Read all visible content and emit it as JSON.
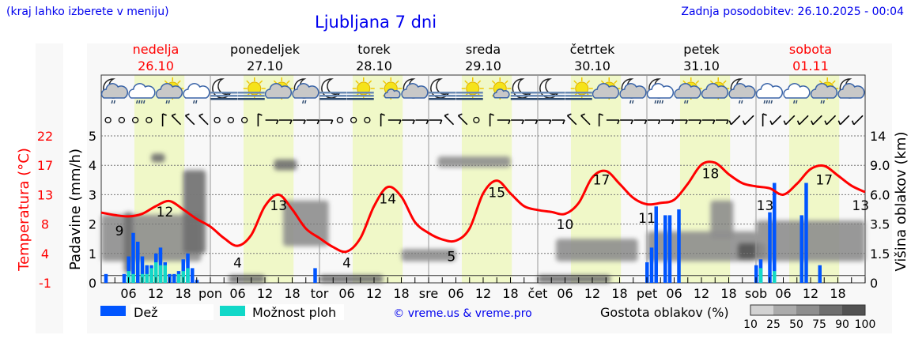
{
  "header": {
    "menu_hint": "(kraj lahko izberete v meniju)",
    "title": "Ljubljana 7 dni",
    "updated": "Zadnja posodobitev: 26.10.2025 - 00:04"
  },
  "colors": {
    "rain": "#0055ff",
    "showers": "#11d8c8",
    "temperature": "#ff0000",
    "daylight": "#f0f8c8",
    "weekend": "#ff0000",
    "link": "#0000ee"
  },
  "days": [
    {
      "name": "nedelja",
      "date": "26.10",
      "abbr": "",
      "weekend": true
    },
    {
      "name": "ponedeljek",
      "date": "27.10",
      "abbr": "pon",
      "weekend": false
    },
    {
      "name": "torek",
      "date": "28.10",
      "abbr": "tor",
      "weekend": false
    },
    {
      "name": "sreda",
      "date": "29.10",
      "abbr": "sre",
      "weekend": false
    },
    {
      "name": "četrtek",
      "date": "30.10",
      "abbr": "čet",
      "weekend": false
    },
    {
      "name": "petek",
      "date": "31.10",
      "abbr": "pet",
      "weekend": false
    },
    {
      "name": "sobota",
      "date": "01.11",
      "abbr": "sob",
      "weekend": true
    }
  ],
  "weather_icons": [
    "moon-cloud-rain",
    "cloud-heavy-rain",
    "sun-cloud-rain",
    "cloud-rain",
    "moon-fog",
    "sun-fog",
    "sun-cloud",
    "moon-cloud-rain",
    "moon-fog",
    "sun-fog",
    "sun-small-cloud",
    "moon-cloud",
    "moon-fog",
    "sun-fog",
    "sun-small-cloud",
    "moon-fog",
    "moon-fog",
    "sun-fog",
    "sun-cloud",
    "moon-cloud-rain",
    "moon-cloud-heavy-rain",
    "sun-cloud-rain",
    "sun-cloud",
    "moon-cloud-rain",
    "cloud-heavy-rain",
    "cloud-rain",
    "sun-cloud-rain",
    "moon-cloud"
  ],
  "wind_directions_deg": [
    "calm",
    "calm",
    "calm",
    "calm",
    0,
    315,
    315,
    315,
    "calm",
    "calm",
    "calm",
    0,
    90,
    90,
    90,
    90,
    90,
    "calm",
    "calm",
    "calm",
    0,
    90,
    90,
    90,
    90,
    315,
    315,
    "calm",
    0,
    90,
    90,
    90,
    90,
    90,
    315,
    315,
    0,
    90,
    90,
    90,
    90,
    90,
    90,
    90,
    90,
    90,
    225,
    225,
    0,
    225,
    225,
    225,
    225,
    225,
    225,
    225
  ],
  "chart_data": {
    "type": "line+bar+heatmap",
    "title": "Ljubljana 7 dni",
    "x_hour_ticks": [
      "06",
      "12",
      "18"
    ],
    "temperature": {
      "axis_label": "Temperatura (°C)",
      "ticks": [
        "22",
        "17",
        "13",
        "8",
        "4",
        "-1"
      ],
      "range": [
        -1,
        22
      ],
      "step_hours": 3,
      "values": [
        10,
        9.6,
        9.4,
        9.8,
        11,
        11.8,
        10.5,
        9,
        7.8,
        6,
        4.8,
        6.5,
        11,
        12.8,
        10.5,
        7.5,
        6,
        4.6,
        3.9,
        6,
        11,
        14,
        12.5,
        8.5,
        6.8,
        5.8,
        5.6,
        7.5,
        13,
        15,
        13,
        11,
        10.4,
        10.1,
        9.8,
        11.5,
        15.5,
        16.5,
        14.5,
        12.3,
        11.3,
        11.5,
        12,
        14.5,
        17.5,
        17.8,
        16,
        14.6,
        14.1,
        13.8,
        12.8,
        14.5,
        16.8,
        17.3,
        15.8,
        14.2,
        13.2
      ],
      "labels": [
        {
          "hour": 4,
          "text": "9"
        },
        {
          "hour": 14,
          "text": "12"
        },
        {
          "hour": 30,
          "text": "4"
        },
        {
          "hour": 39,
          "text": "13"
        },
        {
          "hour": 54,
          "text": "4"
        },
        {
          "hour": 63,
          "text": "14"
        },
        {
          "hour": 77,
          "text": "5"
        },
        {
          "hour": 87,
          "text": "15"
        },
        {
          "hour": 102,
          "text": "10"
        },
        {
          "hour": 110,
          "text": "17"
        },
        {
          "hour": 120,
          "text": "11"
        },
        {
          "hour": 134,
          "text": "18"
        },
        {
          "hour": 146,
          "text": "13"
        },
        {
          "hour": 159,
          "text": "17"
        },
        {
          "hour": 167,
          "text": "13"
        }
      ]
    },
    "precipitation": {
      "axis_label": "Padavine (mm/h)",
      "ticks": [
        "0",
        "1",
        "2",
        "3",
        "4",
        "5"
      ],
      "range": [
        0,
        5
      ],
      "hourly": [
        {
          "hour": 1,
          "rain": 0.3,
          "showers": 0
        },
        {
          "hour": 5,
          "rain": 0.3,
          "showers": 0
        },
        {
          "hour": 6,
          "rain": 0.9,
          "showers": 0.4
        },
        {
          "hour": 7,
          "rain": 1.7,
          "showers": 0.3
        },
        {
          "hour": 8,
          "rain": 1.4,
          "showers": 0
        },
        {
          "hour": 9,
          "rain": 0.9,
          "showers": 0.3
        },
        {
          "hour": 10,
          "rain": 0.6,
          "showers": 0.3
        },
        {
          "hour": 11,
          "rain": 0.6,
          "showers": 0.5
        },
        {
          "hour": 12,
          "rain": 1.0,
          "showers": 0.7
        },
        {
          "hour": 13,
          "rain": 1.2,
          "showers": 0.6
        },
        {
          "hour": 14,
          "rain": 0.7,
          "showers": 0.6
        },
        {
          "hour": 15,
          "rain": 0.3,
          "showers": 0
        },
        {
          "hour": 16,
          "rain": 0.3,
          "showers": 0
        },
        {
          "hour": 17,
          "rain": 0.4,
          "showers": 0.3
        },
        {
          "hour": 18,
          "rain": 0.8,
          "showers": 0.4
        },
        {
          "hour": 19,
          "rain": 1.0,
          "showers": 0.5
        },
        {
          "hour": 20,
          "rain": 0.5,
          "showers": 0
        },
        {
          "hour": 21,
          "rain": 0.1,
          "showers": 0
        },
        {
          "hour": 47,
          "rain": 0.5,
          "showers": 0
        },
        {
          "hour": 120,
          "rain": 0.7,
          "showers": 0
        },
        {
          "hour": 121,
          "rain": 1.2,
          "showers": 0
        },
        {
          "hour": 122,
          "rain": 2.6,
          "showers": 0
        },
        {
          "hour": 124,
          "rain": 2.3,
          "showers": 0
        },
        {
          "hour": 125,
          "rain": 2.3,
          "showers": 0
        },
        {
          "hour": 127,
          "rain": 2.5,
          "showers": 0
        },
        {
          "hour": 144,
          "rain": 0.6,
          "showers": 0
        },
        {
          "hour": 145,
          "rain": 0.8,
          "showers": 0.5
        },
        {
          "hour": 147,
          "rain": 2.4,
          "showers": 0
        },
        {
          "hour": 148,
          "rain": 3.4,
          "showers": 0.4
        },
        {
          "hour": 154,
          "rain": 2.3,
          "showers": 0
        },
        {
          "hour": 155,
          "rain": 3.4,
          "showers": 0
        },
        {
          "hour": 158,
          "rain": 0.6,
          "showers": 0
        }
      ]
    },
    "cloud_height": {
      "axis_label": "Višina oblakov (km)",
      "ticks": [
        "0",
        "1.5",
        "3.5",
        "6.0",
        "9.0",
        "14"
      ]
    },
    "cloud_density": {
      "legend_title": "Gostota oblakov (%)",
      "levels": [
        "10",
        "25",
        "50",
        "75",
        "90",
        "100"
      ],
      "level_colors": [
        "#d2d2d2",
        "#ababab",
        "#8e8e8e",
        "#6e6e6e",
        "#525252"
      ],
      "areas": [
        {
          "from_h": 0,
          "to_h": 22,
          "low_km": 1.1,
          "high_km": 4.3,
          "density": 50
        },
        {
          "from_h": 5,
          "to_h": 7,
          "low_km": 0.5,
          "high_km": 4.5,
          "density": 75
        },
        {
          "from_h": 11,
          "to_h": 14,
          "low_km": 9.5,
          "high_km": 11,
          "density": 75
        },
        {
          "from_h": 18,
          "to_h": 23,
          "low_km": 1.5,
          "high_km": 8.5,
          "density": 75
        },
        {
          "from_h": 28,
          "to_h": 36,
          "low_km": 0,
          "high_km": 0.4,
          "density": 75
        },
        {
          "from_h": 38,
          "to_h": 43,
          "low_km": 8.5,
          "high_km": 10,
          "density": 75
        },
        {
          "from_h": 40,
          "to_h": 50,
          "low_km": 2,
          "high_km": 5.5,
          "density": 50
        },
        {
          "from_h": 48,
          "to_h": 62,
          "low_km": 0,
          "high_km": 0.4,
          "density": 75
        },
        {
          "from_h": 66,
          "to_h": 78,
          "low_km": 1.1,
          "high_km": 1.8,
          "density": 50
        },
        {
          "from_h": 74,
          "to_h": 90,
          "low_km": 8.8,
          "high_km": 10.5,
          "density": 50
        },
        {
          "from_h": 96,
          "to_h": 112,
          "low_km": 0,
          "high_km": 0.4,
          "density": 75
        },
        {
          "from_h": 100,
          "to_h": 118,
          "low_km": 1.1,
          "high_km": 2.5,
          "density": 50
        },
        {
          "from_h": 120,
          "to_h": 144,
          "low_km": 1.1,
          "high_km": 3.0,
          "density": 50
        },
        {
          "from_h": 134,
          "to_h": 139,
          "low_km": 2.5,
          "high_km": 5.5,
          "density": 50
        },
        {
          "from_h": 140,
          "to_h": 146,
          "low_km": 1.2,
          "high_km": 2.2,
          "density": 90
        },
        {
          "from_h": 144,
          "to_h": 168,
          "low_km": 1.1,
          "high_km": 3.8,
          "density": 50
        }
      ]
    },
    "daylight_hours": [
      7.3,
      18.3
    ],
    "legend": {
      "rain": "Dež",
      "showers": "Možnost ploh",
      "credit": "© vreme.us & vreme.pro"
    }
  }
}
